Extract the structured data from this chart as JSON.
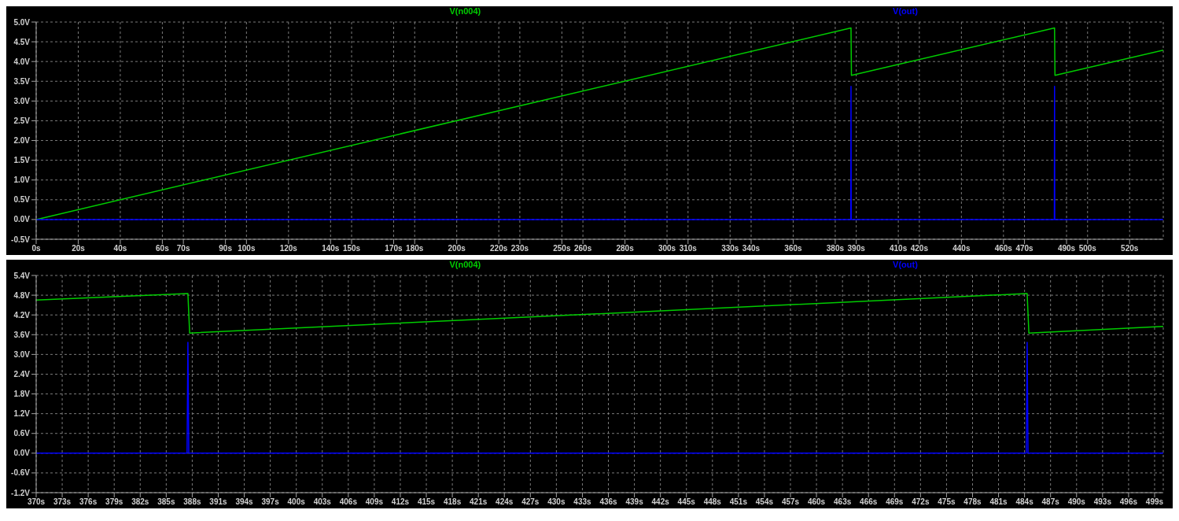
{
  "chart_data": [
    {
      "type": "line",
      "legend": "top",
      "grid": true,
      "line_style": "solid",
      "xlim": [
        0,
        536
      ],
      "ylim": [
        -0.5,
        5.0
      ],
      "xticks": [
        {
          "value": 0,
          "label": "0s"
        },
        {
          "value": 20,
          "label": "20s"
        },
        {
          "value": 40,
          "label": "40s"
        },
        {
          "value": 60,
          "label": "60s"
        },
        {
          "value": 70,
          "label": "70s"
        },
        {
          "value": 90,
          "label": "90s"
        },
        {
          "value": 100,
          "label": "100s"
        },
        {
          "value": 120,
          "label": "120s"
        },
        {
          "value": 140,
          "label": "140s"
        },
        {
          "value": 150,
          "label": "150s"
        },
        {
          "value": 170,
          "label": "170s"
        },
        {
          "value": 180,
          "label": "180s"
        },
        {
          "value": 200,
          "label": "200s"
        },
        {
          "value": 220,
          "label": "220s"
        },
        {
          "value": 230,
          "label": "230s"
        },
        {
          "value": 250,
          "label": "250s"
        },
        {
          "value": 260,
          "label": "260s"
        },
        {
          "value": 280,
          "label": "280s"
        },
        {
          "value": 300,
          "label": "300s"
        },
        {
          "value": 310,
          "label": "310s"
        },
        {
          "value": 330,
          "label": "330s"
        },
        {
          "value": 340,
          "label": "340s"
        },
        {
          "value": 360,
          "label": "360s"
        },
        {
          "value": 380,
          "label": "380s"
        },
        {
          "value": 390,
          "label": "390s"
        },
        {
          "value": 410,
          "label": "410s"
        },
        {
          "value": 420,
          "label": "420s"
        },
        {
          "value": 440,
          "label": "440s"
        },
        {
          "value": 460,
          "label": "460s"
        },
        {
          "value": 470,
          "label": "470s"
        },
        {
          "value": 490,
          "label": "490s"
        },
        {
          "value": 500,
          "label": "500s"
        },
        {
          "value": 520,
          "label": "520s"
        }
      ],
      "yticks": [
        {
          "value": -0.5,
          "label": "-0.5V"
        },
        {
          "value": 0,
          "label": "0.0V"
        },
        {
          "value": 0.5,
          "label": "0.5V"
        },
        {
          "value": 1.0,
          "label": "1.0V"
        },
        {
          "value": 1.5,
          "label": "1.5V"
        },
        {
          "value": 2.0,
          "label": "2.0V"
        },
        {
          "value": 2.5,
          "label": "2.5V"
        },
        {
          "value": 3.0,
          "label": "3.0V"
        },
        {
          "value": 3.5,
          "label": "3.5V"
        },
        {
          "value": 4.0,
          "label": "4.0V"
        },
        {
          "value": 4.5,
          "label": "4.5V"
        },
        {
          "value": 5.0,
          "label": "5.0V"
        }
      ],
      "series": [
        {
          "name": "V(n004)",
          "color": "#00cc00",
          "x": [
            0,
            387.5,
            387.7,
            484.3,
            484.5,
            536
          ],
          "values": [
            0,
            4.85,
            3.65,
            4.85,
            3.65,
            4.29
          ]
        },
        {
          "name": "V(out)",
          "color": "#0000ff",
          "x": [
            0,
            387.4,
            387.5,
            387.6,
            484.2,
            484.3,
            484.4,
            536
          ],
          "values": [
            0,
            0,
            3.37,
            0,
            0,
            3.37,
            0,
            0
          ]
        }
      ]
    },
    {
      "type": "line",
      "legend": "top",
      "grid": true,
      "line_style": "solid",
      "xlim": [
        370,
        500
      ],
      "ylim": [
        -1.2,
        5.4
      ],
      "xticks": [
        {
          "value": 370,
          "label": "370s"
        },
        {
          "value": 373,
          "label": "373s"
        },
        {
          "value": 376,
          "label": "376s"
        },
        {
          "value": 379,
          "label": "379s"
        },
        {
          "value": 382,
          "label": "382s"
        },
        {
          "value": 385,
          "label": "385s"
        },
        {
          "value": 388,
          "label": "388s"
        },
        {
          "value": 391,
          "label": "391s"
        },
        {
          "value": 394,
          "label": "394s"
        },
        {
          "value": 397,
          "label": "397s"
        },
        {
          "value": 400,
          "label": "400s"
        },
        {
          "value": 403,
          "label": "403s"
        },
        {
          "value": 406,
          "label": "406s"
        },
        {
          "value": 409,
          "label": "409s"
        },
        {
          "value": 412,
          "label": "412s"
        },
        {
          "value": 415,
          "label": "415s"
        },
        {
          "value": 418,
          "label": "418s"
        },
        {
          "value": 421,
          "label": "421s"
        },
        {
          "value": 424,
          "label": "424s"
        },
        {
          "value": 427,
          "label": "427s"
        },
        {
          "value": 430,
          "label": "430s"
        },
        {
          "value": 433,
          "label": "433s"
        },
        {
          "value": 436,
          "label": "436s"
        },
        {
          "value": 439,
          "label": "439s"
        },
        {
          "value": 442,
          "label": "442s"
        },
        {
          "value": 445,
          "label": "445s"
        },
        {
          "value": 448,
          "label": "448s"
        },
        {
          "value": 451,
          "label": "451s"
        },
        {
          "value": 454,
          "label": "454s"
        },
        {
          "value": 457,
          "label": "457s"
        },
        {
          "value": 460,
          "label": "460s"
        },
        {
          "value": 463,
          "label": "463s"
        },
        {
          "value": 466,
          "label": "466s"
        },
        {
          "value": 469,
          "label": "469s"
        },
        {
          "value": 472,
          "label": "472s"
        },
        {
          "value": 475,
          "label": "475s"
        },
        {
          "value": 478,
          "label": "478s"
        },
        {
          "value": 481,
          "label": "481s"
        },
        {
          "value": 484,
          "label": "484s"
        },
        {
          "value": 487,
          "label": "487s"
        },
        {
          "value": 490,
          "label": "490s"
        },
        {
          "value": 493,
          "label": "493s"
        },
        {
          "value": 496,
          "label": "496s"
        },
        {
          "value": 499,
          "label": "499s"
        }
      ],
      "yticks": [
        {
          "value": -1.2,
          "label": "-1.2V"
        },
        {
          "value": -0.6,
          "label": "-0.6V"
        },
        {
          "value": 0,
          "label": "0.0V"
        },
        {
          "value": 0.6,
          "label": "0.6V"
        },
        {
          "value": 1.2,
          "label": "1.2V"
        },
        {
          "value": 1.8,
          "label": "1.8V"
        },
        {
          "value": 2.4,
          "label": "2.4V"
        },
        {
          "value": 3.0,
          "label": "3.0V"
        },
        {
          "value": 3.6,
          "label": "3.6V"
        },
        {
          "value": 4.2,
          "label": "4.2V"
        },
        {
          "value": 4.8,
          "label": "4.8V"
        },
        {
          "value": 5.4,
          "label": "5.4V"
        }
      ],
      "series": [
        {
          "name": "V(n004)",
          "color": "#00cc00",
          "x": [
            370,
            387.5,
            387.7,
            484.3,
            484.5,
            500
          ],
          "values": [
            4.65,
            4.85,
            3.65,
            4.85,
            3.65,
            3.85
          ]
        },
        {
          "name": "V(out)",
          "color": "#0000ff",
          "x": [
            370,
            387.4,
            387.5,
            387.6,
            484.2,
            484.3,
            484.4,
            500
          ],
          "values": [
            0,
            0,
            3.37,
            0,
            0,
            3.37,
            0,
            0
          ]
        }
      ]
    }
  ]
}
